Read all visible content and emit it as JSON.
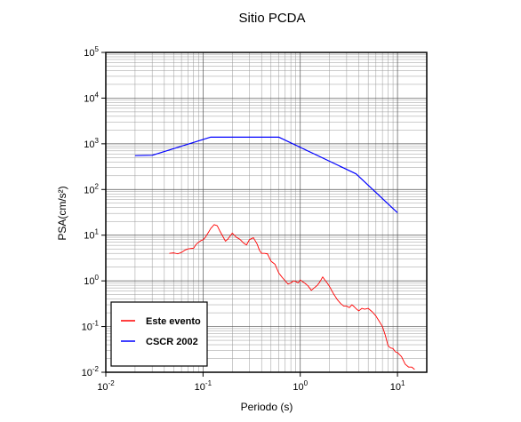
{
  "chart_data": {
    "type": "line",
    "title": "Sitio PCDA",
    "xlabel": "Periodo (s)",
    "ylabel": "PSA(cm/s²)",
    "x_scale": "log",
    "y_scale": "log",
    "xlim": [
      0.01,
      20
    ],
    "ylim": [
      0.01,
      100000
    ],
    "grid": true,
    "legend_position": "bottom-left",
    "x_ticks": [
      {
        "value": 0.01,
        "base": "10",
        "exp": "-2"
      },
      {
        "value": 0.1,
        "base": "10",
        "exp": "-1"
      },
      {
        "value": 1,
        "base": "10",
        "exp": "0"
      },
      {
        "value": 10,
        "base": "10",
        "exp": "1"
      }
    ],
    "y_ticks": [
      {
        "value": 0.01,
        "base": "10",
        "exp": "-2"
      },
      {
        "value": 0.1,
        "base": "10",
        "exp": "-1"
      },
      {
        "value": 1,
        "base": "10",
        "exp": "0"
      },
      {
        "value": 10,
        "base": "10",
        "exp": "1"
      },
      {
        "value": 100,
        "base": "10",
        "exp": "2"
      },
      {
        "value": 1000,
        "base": "10",
        "exp": "3"
      },
      {
        "value": 10000,
        "base": "10",
        "exp": "4"
      },
      {
        "value": 100000,
        "base": "10",
        "exp": "5"
      }
    ],
    "series": [
      {
        "name": "Este evento",
        "color": "#ff0000",
        "x": [
          0.045,
          0.05,
          0.055,
          0.06,
          0.065,
          0.07,
          0.075,
          0.08,
          0.085,
          0.09,
          0.095,
          0.1,
          0.105,
          0.11,
          0.115,
          0.12,
          0.125,
          0.13,
          0.14,
          0.15,
          0.16,
          0.17,
          0.18,
          0.19,
          0.2,
          0.22,
          0.24,
          0.26,
          0.28,
          0.3,
          0.33,
          0.36,
          0.38,
          0.4,
          0.43,
          0.46,
          0.5,
          0.55,
          0.6,
          0.65,
          0.7,
          0.75,
          0.8,
          0.85,
          0.9,
          0.95,
          1.0,
          1.05,
          1.1,
          1.2,
          1.3,
          1.4,
          1.5,
          1.6,
          1.7,
          1.8,
          1.9,
          2.0,
          2.2,
          2.4,
          2.6,
          2.8,
          3.0,
          3.2,
          3.4,
          3.6,
          3.8,
          4.0,
          4.3,
          4.6,
          5.0,
          5.5,
          6.0,
          6.5,
          7.0,
          7.5,
          8.0,
          8.5,
          9.0,
          9.5,
          10.0,
          11.0,
          12.0,
          13.0,
          14.0,
          15.0
        ],
        "values": [
          4.0,
          4.1,
          3.9,
          4.2,
          4.7,
          5.0,
          5.1,
          5.2,
          6.3,
          7.0,
          7.6,
          7.9,
          8.8,
          10.3,
          12.0,
          14.0,
          15.4,
          17.0,
          16.1,
          12.0,
          9.4,
          7.4,
          8.2,
          9.6,
          11.1,
          9.0,
          8.1,
          6.8,
          6.1,
          8.0,
          8.8,
          6.4,
          4.7,
          4.0,
          4.0,
          3.9,
          2.7,
          2.3,
          1.5,
          1.2,
          1.0,
          0.85,
          0.9,
          1.0,
          0.97,
          0.9,
          1.05,
          0.97,
          0.91,
          0.78,
          0.62,
          0.71,
          0.8,
          0.97,
          1.22,
          1.03,
          0.89,
          0.75,
          0.52,
          0.39,
          0.32,
          0.28,
          0.28,
          0.26,
          0.3,
          0.27,
          0.24,
          0.22,
          0.25,
          0.24,
          0.25,
          0.21,
          0.17,
          0.13,
          0.1,
          0.064,
          0.038,
          0.034,
          0.033,
          0.028,
          0.027,
          0.022,
          0.015,
          0.013,
          0.013,
          0.0115
        ]
      },
      {
        "name": "CSCR 2002",
        "color": "#0000ff",
        "x": [
          0.02,
          0.03,
          0.12,
          0.6,
          3.75,
          10.0
        ],
        "values": [
          550,
          560,
          1400,
          1400,
          220,
          31
        ]
      }
    ]
  }
}
